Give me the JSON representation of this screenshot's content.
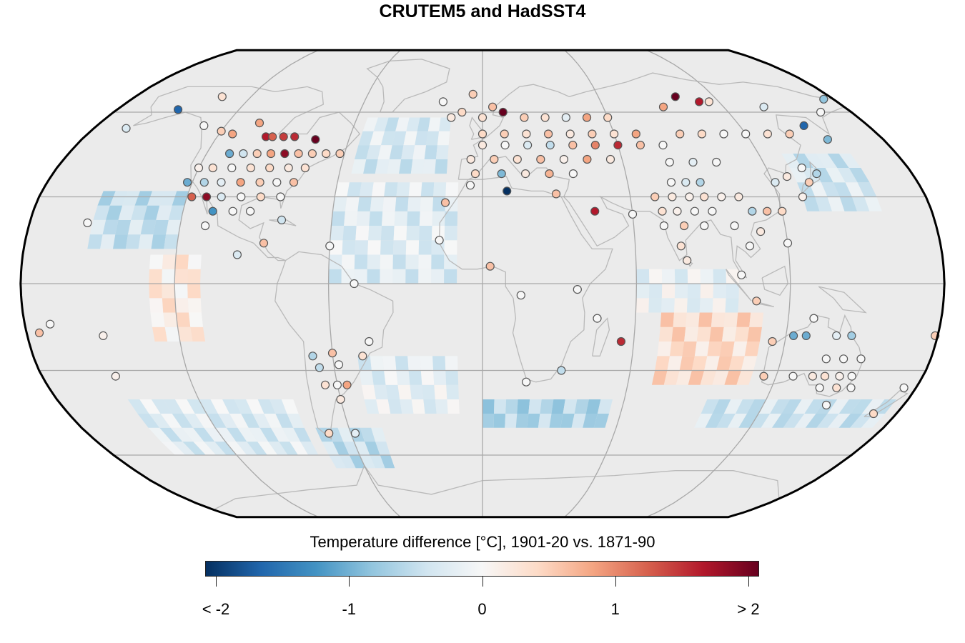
{
  "title": "CRUTEM5 and HadSST4",
  "legend": {
    "title": "Temperature difference [°C], 1901-20 vs. 1871-90",
    "ticks": [
      {
        "value": -2,
        "label": "< -2"
      },
      {
        "value": -1,
        "label": "-1"
      },
      {
        "value": 0,
        "label": "0"
      },
      {
        "value": 1,
        "label": "1"
      },
      {
        "value": 2,
        "label": "> 2"
      }
    ],
    "range": [
      -2,
      2
    ],
    "colormap": [
      "#053061",
      "#2166ac",
      "#4393c3",
      "#92c5de",
      "#d1e5f0",
      "#f7f7f7",
      "#fddbc7",
      "#f4a582",
      "#d6604d",
      "#b2182b",
      "#67001f"
    ]
  },
  "map": {
    "projection": "Robinson",
    "background_color": "#ebebeb",
    "graticule_color": "#a8a8a8",
    "coastline_color": "#b9b9b9",
    "graticule_longitudes": [
      -180,
      -120,
      -60,
      0,
      60,
      120,
      180
    ],
    "graticule_latitudes": [
      -60,
      -30,
      0,
      30,
      60
    ],
    "ocean_patches": [
      {
        "lon": [
          -155,
          -120
        ],
        "lat": [
          12,
          30
        ],
        "value": -0.45
      },
      {
        "lon": [
          -130,
          -110
        ],
        "lat": [
          -20,
          10
        ],
        "value": 0.2
      },
      {
        "lon": [
          -150,
          -80
        ],
        "lat": [
          -60,
          -40
        ],
        "value": -0.25
      },
      {
        "lon": [
          -75,
          -45
        ],
        "lat": [
          -65,
          -50
        ],
        "value": -0.45
      },
      {
        "lon": [
          -50,
          -10
        ],
        "lat": [
          -45,
          -25
        ],
        "value": -0.2
      },
      {
        "lon": [
          -60,
          -10
        ],
        "lat": [
          0,
          35
        ],
        "value": -0.25
      },
      {
        "lon": [
          -55,
          -15
        ],
        "lat": [
          38,
          55
        ],
        "value": -0.3
      },
      {
        "lon": [
          0,
          55
        ],
        "lat": [
          -50,
          -40
        ],
        "value": -0.6
      },
      {
        "lon": [
          70,
          110
        ],
        "lat": [
          -35,
          -10
        ],
        "value": 0.35
      },
      {
        "lon": [
          95,
          175
        ],
        "lat": [
          -50,
          -40
        ],
        "value": -0.4
      },
      {
        "lon": [
          130,
          160
        ],
        "lat": [
          25,
          45
        ],
        "value": -0.35
      },
      {
        "lon": [
          60,
          100
        ],
        "lat": [
          -10,
          5
        ],
        "value": -0.15
      }
    ]
  },
  "chart_data": {
    "type": "scatter",
    "description_units": "station temperature difference, degrees C",
    "stations": [
      {
        "lon": -150,
        "lat": 61,
        "v": -1.6
      },
      {
        "lon": -135,
        "lat": 66,
        "v": 0.3
      },
      {
        "lon": -165,
        "lat": 54,
        "v": -0.3
      },
      {
        "lon": -130,
        "lat": 55,
        "v": 0.0
      },
      {
        "lon": -114,
        "lat": 52,
        "v": 0.8
      },
      {
        "lon": -120,
        "lat": 53,
        "v": 0.5
      },
      {
        "lon": -105,
        "lat": 56,
        "v": 0.8
      },
      {
        "lon": -98,
        "lat": 51,
        "v": 1.6
      },
      {
        "lon": -95,
        "lat": 51,
        "v": 1.2
      },
      {
        "lon": -90,
        "lat": 51,
        "v": 1.4
      },
      {
        "lon": -85,
        "lat": 51,
        "v": 1.5
      },
      {
        "lon": -75,
        "lat": 50,
        "v": 2.5
      },
      {
        "lon": -110,
        "lat": 45,
        "v": -1.0
      },
      {
        "lon": -104,
        "lat": 45,
        "v": -0.4
      },
      {
        "lon": -98,
        "lat": 45,
        "v": 0.5
      },
      {
        "lon": -92,
        "lat": 45,
        "v": 0.8
      },
      {
        "lon": -86,
        "lat": 45,
        "v": 1.8
      },
      {
        "lon": -80,
        "lat": 45,
        "v": 0.6
      },
      {
        "lon": -74,
        "lat": 45,
        "v": 0.5
      },
      {
        "lon": -68,
        "lat": 45,
        "v": 0.4
      },
      {
        "lon": -62,
        "lat": 45,
        "v": 0.5
      },
      {
        "lon": -120,
        "lat": 40,
        "v": 0.1
      },
      {
        "lon": -114,
        "lat": 40,
        "v": 0.3
      },
      {
        "lon": -106,
        "lat": 40,
        "v": 0.0
      },
      {
        "lon": -98,
        "lat": 40,
        "v": 0.3
      },
      {
        "lon": -90,
        "lat": 40,
        "v": 0.4
      },
      {
        "lon": -82,
        "lat": 40,
        "v": 0.2
      },
      {
        "lon": -75,
        "lat": 40,
        "v": 0.3
      },
      {
        "lon": -122,
        "lat": 35,
        "v": -1.0
      },
      {
        "lon": -115,
        "lat": 35,
        "v": -0.6
      },
      {
        "lon": -108,
        "lat": 35,
        "v": -0.2
      },
      {
        "lon": -100,
        "lat": 35,
        "v": 0.8
      },
      {
        "lon": -92,
        "lat": 35,
        "v": 0.5
      },
      {
        "lon": -85,
        "lat": 35,
        "v": 0.0
      },
      {
        "lon": -78,
        "lat": 35,
        "v": 0.6
      },
      {
        "lon": -118,
        "lat": 30,
        "v": 1.2
      },
      {
        "lon": -112,
        "lat": 30,
        "v": 1.8
      },
      {
        "lon": -106,
        "lat": 30,
        "v": -0.3
      },
      {
        "lon": -98,
        "lat": 30,
        "v": 0.0
      },
      {
        "lon": -90,
        "lat": 30,
        "v": 0.4
      },
      {
        "lon": -82,
        "lat": 30,
        "v": 0.0
      },
      {
        "lon": -108,
        "lat": 25,
        "v": -1.2
      },
      {
        "lon": -100,
        "lat": 25,
        "v": 0.0
      },
      {
        "lon": -93,
        "lat": 25,
        "v": 0.0
      },
      {
        "lon": -110,
        "lat": 20,
        "v": 0.0
      },
      {
        "lon": -80,
        "lat": 22,
        "v": -0.4
      },
      {
        "lon": -86,
        "lat": 14,
        "v": 0.6
      },
      {
        "lon": -96,
        "lat": 10,
        "v": -0.3
      },
      {
        "lon": -157,
        "lat": 21,
        "v": 0.0
      },
      {
        "lon": -60,
        "lat": 13,
        "v": 0.0
      },
      {
        "lon": -50,
        "lat": 0,
        "v": 0.0
      },
      {
        "lon": -170,
        "lat": -14,
        "v": 0.0
      },
      {
        "lon": -175,
        "lat": -17,
        "v": 0.6
      },
      {
        "lon": -150,
        "lat": -18,
        "v": 0.1
      },
      {
        "lon": -150,
        "lat": -32,
        "v": 0.1
      },
      {
        "lon": -68,
        "lat": -25,
        "v": -0.6
      },
      {
        "lon": -66,
        "lat": -29,
        "v": -0.5
      },
      {
        "lon": -60,
        "lat": -24,
        "v": 0.6
      },
      {
        "lon": -58,
        "lat": -28,
        "v": 0.0
      },
      {
        "lon": -65,
        "lat": -35,
        "v": 0.3
      },
      {
        "lon": -60,
        "lat": -35,
        "v": 0.0
      },
      {
        "lon": -56,
        "lat": -35,
        "v": 0.8
      },
      {
        "lon": -60,
        "lat": -40,
        "v": 0.2
      },
      {
        "lon": -48,
        "lat": -25,
        "v": 0.3
      },
      {
        "lon": -70,
        "lat": -52,
        "v": 0.4
      },
      {
        "lon": -58,
        "lat": -52,
        "v": -0.2
      },
      {
        "lon": -45,
        "lat": -20,
        "v": 0.0
      },
      {
        "lon": -5,
        "lat": 67,
        "v": 0.5
      },
      {
        "lon": -10,
        "lat": 60,
        "v": 0.4
      },
      {
        "lon": 10,
        "lat": 60,
        "v": 2.5
      },
      {
        "lon": 5,
        "lat": 62,
        "v": 0.6
      },
      {
        "lon": 0,
        "lat": 58,
        "v": 0.3
      },
      {
        "lon": -20,
        "lat": 64,
        "v": 0.0
      },
      {
        "lon": -15,
        "lat": 58,
        "v": 0.2
      },
      {
        "lon": 20,
        "lat": 58,
        "v": 0.5
      },
      {
        "lon": 30,
        "lat": 58,
        "v": 0.3
      },
      {
        "lon": 40,
        "lat": 58,
        "v": -0.2
      },
      {
        "lon": 50,
        "lat": 58,
        "v": 0.8
      },
      {
        "lon": 60,
        "lat": 58,
        "v": 0.4
      },
      {
        "lon": 0,
        "lat": 52,
        "v": 0.4
      },
      {
        "lon": 10,
        "lat": 52,
        "v": 0.5
      },
      {
        "lon": 20,
        "lat": 52,
        "v": 0.3
      },
      {
        "lon": 30,
        "lat": 52,
        "v": 0.6
      },
      {
        "lon": 40,
        "lat": 52,
        "v": 0.2
      },
      {
        "lon": 50,
        "lat": 52,
        "v": 0.5
      },
      {
        "lon": 60,
        "lat": 52,
        "v": 0.3
      },
      {
        "lon": 70,
        "lat": 52,
        "v": 0.8
      },
      {
        "lon": 0,
        "lat": 48,
        "v": 0.2
      },
      {
        "lon": 10,
        "lat": 48,
        "v": 0.0
      },
      {
        "lon": 20,
        "lat": 48,
        "v": -0.3
      },
      {
        "lon": 30,
        "lat": 48,
        "v": -0.5
      },
      {
        "lon": 40,
        "lat": 48,
        "v": 0.6
      },
      {
        "lon": 50,
        "lat": 48,
        "v": 1.0
      },
      {
        "lon": 60,
        "lat": 48,
        "v": 1.5
      },
      {
        "lon": 70,
        "lat": 48,
        "v": 0.6
      },
      {
        "lon": -5,
        "lat": 43,
        "v": 0.2
      },
      {
        "lon": 5,
        "lat": 43,
        "v": 0.5
      },
      {
        "lon": 15,
        "lat": 43,
        "v": 0.3
      },
      {
        "lon": 25,
        "lat": 43,
        "v": 0.6
      },
      {
        "lon": 35,
        "lat": 43,
        "v": 0.1
      },
      {
        "lon": 45,
        "lat": 43,
        "v": 0.8
      },
      {
        "lon": 55,
        "lat": 43,
        "v": 0.2
      },
      {
        "lon": -3,
        "lat": 38,
        "v": 0.4
      },
      {
        "lon": 8,
        "lat": 38,
        "v": -0.9
      },
      {
        "lon": 18,
        "lat": 38,
        "v": 0.2
      },
      {
        "lon": 28,
        "lat": 38,
        "v": 0.7
      },
      {
        "lon": 38,
        "lat": 38,
        "v": 0.0
      },
      {
        "lon": 10,
        "lat": 32,
        "v": -2.5
      },
      {
        "lon": 30,
        "lat": 31,
        "v": 0.6
      },
      {
        "lon": 45,
        "lat": 25,
        "v": 1.6
      },
      {
        "lon": 60,
        "lat": 24,
        "v": 0.0
      },
      {
        "lon": -5,
        "lat": 34,
        "v": 0.0
      },
      {
        "lon": -15,
        "lat": 28,
        "v": 0.6
      },
      {
        "lon": -17,
        "lat": 15,
        "v": 0.0
      },
      {
        "lon": 3,
        "lat": 6,
        "v": 0.6
      },
      {
        "lon": 15,
        "lat": -4,
        "v": 0.0
      },
      {
        "lon": 55,
        "lat": -20,
        "v": 1.5
      },
      {
        "lon": 32,
        "lat": -30,
        "v": -0.5
      },
      {
        "lon": 18,
        "lat": -34,
        "v": 0.0
      },
      {
        "lon": 45,
        "lat": -12,
        "v": 0.0
      },
      {
        "lon": 37,
        "lat": -2,
        "v": 0.0
      },
      {
        "lon": 80,
        "lat": 48,
        "v": 0.0
      },
      {
        "lon": 90,
        "lat": 52,
        "v": 0.5
      },
      {
        "lon": 100,
        "lat": 52,
        "v": 0.4
      },
      {
        "lon": 110,
        "lat": 52,
        "v": 0.0
      },
      {
        "lon": 120,
        "lat": 52,
        "v": 0.0
      },
      {
        "lon": 130,
        "lat": 52,
        "v": 0.3
      },
      {
        "lon": 140,
        "lat": 52,
        "v": 0.5
      },
      {
        "lon": 90,
        "lat": 62,
        "v": 0.8
      },
      {
        "lon": 100,
        "lat": 66,
        "v": 2.5
      },
      {
        "lon": 110,
        "lat": 64,
        "v": 1.6
      },
      {
        "lon": 115,
        "lat": 64,
        "v": 0.3
      },
      {
        "lon": 140,
        "lat": 62,
        "v": -0.3
      },
      {
        "lon": 150,
        "lat": 55,
        "v": -1.6
      },
      {
        "lon": 155,
        "lat": 50,
        "v": -0.9
      },
      {
        "lon": 165,
        "lat": 60,
        "v": 0.0
      },
      {
        "lon": 175,
        "lat": 65,
        "v": -0.8
      },
      {
        "lon": 80,
        "lat": 42,
        "v": 0.0
      },
      {
        "lon": 90,
        "lat": 42,
        "v": -0.2
      },
      {
        "lon": 100,
        "lat": 42,
        "v": 0.0
      },
      {
        "lon": 78,
        "lat": 35,
        "v": 0.0
      },
      {
        "lon": 84,
        "lat": 35,
        "v": -0.3
      },
      {
        "lon": 90,
        "lat": 35,
        "v": -0.6
      },
      {
        "lon": 70,
        "lat": 30,
        "v": 0.5
      },
      {
        "lon": 77,
        "lat": 30,
        "v": 0.2
      },
      {
        "lon": 84,
        "lat": 30,
        "v": 0.1
      },
      {
        "lon": 90,
        "lat": 30,
        "v": 0.3
      },
      {
        "lon": 97,
        "lat": 30,
        "v": 0.1
      },
      {
        "lon": 104,
        "lat": 30,
        "v": 0.2
      },
      {
        "lon": 72,
        "lat": 25,
        "v": 0.3
      },
      {
        "lon": 78,
        "lat": 25,
        "v": 0.1
      },
      {
        "lon": 85,
        "lat": 25,
        "v": 0.0
      },
      {
        "lon": 92,
        "lat": 25,
        "v": 0.0
      },
      {
        "lon": 108,
        "lat": 25,
        "v": -0.6
      },
      {
        "lon": 114,
        "lat": 25,
        "v": 0.6
      },
      {
        "lon": 120,
        "lat": 25,
        "v": 0.4
      },
      {
        "lon": 72,
        "lat": 20,
        "v": 0.0
      },
      {
        "lon": 80,
        "lat": 20,
        "v": 0.5
      },
      {
        "lon": 88,
        "lat": 20,
        "v": 0.0
      },
      {
        "lon": 100,
        "lat": 20,
        "v": 0.0
      },
      {
        "lon": 110,
        "lat": 18,
        "v": 0.2
      },
      {
        "lon": 78,
        "lat": 13,
        "v": 0.3
      },
      {
        "lon": 80,
        "lat": 8,
        "v": 0.2
      },
      {
        "lon": 105,
        "lat": 13,
        "v": 0.0
      },
      {
        "lon": 120,
        "lat": 14,
        "v": 0.0
      },
      {
        "lon": 101,
        "lat": 3,
        "v": 0.0
      },
      {
        "lon": 107,
        "lat": -6,
        "v": 0.5
      },
      {
        "lon": 121,
        "lat": 35,
        "v": -0.3
      },
      {
        "lon": 127,
        "lat": 37,
        "v": 0.2
      },
      {
        "lon": 135,
        "lat": 35,
        "v": 0.5
      },
      {
        "lon": 140,
        "lat": 38,
        "v": -0.6
      },
      {
        "lon": 135,
        "lat": 40,
        "v": 0.0
      },
      {
        "lon": 130,
        "lat": 30,
        "v": 0.1
      },
      {
        "lon": 130,
        "lat": -12,
        "v": 0.0
      },
      {
        "lon": 115,
        "lat": -20,
        "v": 0.5
      },
      {
        "lon": 123,
        "lat": -18,
        "v": -1.0
      },
      {
        "lon": 128,
        "lat": -18,
        "v": -1.0
      },
      {
        "lon": 140,
        "lat": -18,
        "v": -0.2
      },
      {
        "lon": 146,
        "lat": -18,
        "v": -0.7
      },
      {
        "lon": 138,
        "lat": -26,
        "v": 0.0
      },
      {
        "lon": 145,
        "lat": -26,
        "v": 0.0
      },
      {
        "lon": 152,
        "lat": -26,
        "v": 0.0
      },
      {
        "lon": 115,
        "lat": -32,
        "v": 0.5
      },
      {
        "lon": 127,
        "lat": -32,
        "v": 0.0
      },
      {
        "lon": 135,
        "lat": -32,
        "v": 0.2
      },
      {
        "lon": 140,
        "lat": -32,
        "v": 0.3
      },
      {
        "lon": 146,
        "lat": -32,
        "v": 0.1
      },
      {
        "lon": 151,
        "lat": -32,
        "v": 0.0
      },
      {
        "lon": 140,
        "lat": -36,
        "v": 0.0
      },
      {
        "lon": 147,
        "lat": -36,
        "v": 0.3
      },
      {
        "lon": 153,
        "lat": -36,
        "v": 0.0
      },
      {
        "lon": 147,
        "lat": -42,
        "v": 0.0
      },
      {
        "lon": 175,
        "lat": -36,
        "v": 0.0
      },
      {
        "lon": 170,
        "lat": -45,
        "v": 0.4
      },
      {
        "lon": 179,
        "lat": -18,
        "v": 0.5
      }
    ]
  }
}
